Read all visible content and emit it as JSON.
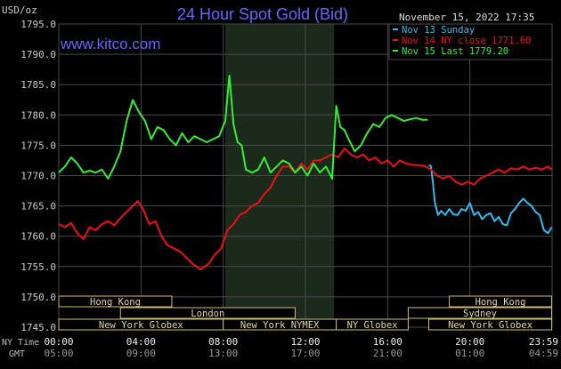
{
  "chart_data": {
    "type": "line",
    "title": "24 Hour Spot Gold (Bid)",
    "watermark": "www.kitco.com",
    "datetime": "November 15, 2022 17:35",
    "y_unit": "USD/oz",
    "ylim": [
      1745.0,
      1795.0
    ],
    "y_ticks": [
      "1795.0",
      "1790.0",
      "1785.0",
      "1780.0",
      "1775.0",
      "1770.0",
      "1765.0",
      "1760.0",
      "1755.0",
      "1750.0",
      "1745.0"
    ],
    "xlim": [
      0,
      24
    ],
    "x_ticks": [
      {
        "hour": 0,
        "ny": "00:00",
        "gmt": "05:00"
      },
      {
        "hour": 4,
        "ny": "04:00",
        "gmt": "09:00"
      },
      {
        "hour": 8,
        "ny": "08:00",
        "gmt": "13:00"
      },
      {
        "hour": 12,
        "ny": "12:00",
        "gmt": "17:00"
      },
      {
        "hour": 16,
        "ny": "16:00",
        "gmt": "21:00"
      },
      {
        "hour": 20,
        "ny": "20:00",
        "gmt": "01:00"
      },
      {
        "hour": 23.983,
        "ny": "23:59",
        "gmt": "04:59"
      }
    ],
    "x_axis_row_labels": {
      "ny": "NY Time",
      "gmt": "GMT"
    },
    "grid": true,
    "legend_position": "top-right",
    "highlight_band": {
      "from_hour": 8.1,
      "to_hour": 13.4,
      "color": "#1c2a1c"
    },
    "series": [
      {
        "name": "Nov 13 Sunday",
        "color": "#33bbee",
        "x": [
          18.0,
          18.1,
          18.2,
          18.3,
          18.45,
          18.6,
          18.8,
          19.0,
          19.2,
          19.4,
          19.6,
          19.8,
          20.0,
          20.2,
          20.4,
          20.6,
          20.8,
          21.0,
          21.2,
          21.4,
          21.6,
          21.8,
          22.0,
          22.2,
          22.4,
          22.6,
          22.8,
          23.0,
          23.2,
          23.4,
          23.6,
          23.8,
          23.98
        ],
        "y": [
          1771.7,
          1771.6,
          1769.0,
          1765.5,
          1763.5,
          1764.2,
          1763.5,
          1764.5,
          1763.6,
          1763.5,
          1764.5,
          1764.2,
          1765.5,
          1763.5,
          1764.0,
          1762.8,
          1763.5,
          1763.8,
          1762.5,
          1763.2,
          1762.0,
          1761.8,
          1763.8,
          1764.5,
          1765.5,
          1766.2,
          1765.5,
          1765.0,
          1764.0,
          1763.5,
          1761.0,
          1760.5,
          1761.5
        ]
      },
      {
        "name": "Nov 14 NY close 1771.60",
        "color": "#ee1111",
        "x": [
          0.0,
          0.3,
          0.6,
          0.9,
          1.2,
          1.5,
          1.8,
          2.1,
          2.4,
          2.7,
          3.0,
          3.3,
          3.6,
          3.85,
          4.1,
          4.4,
          4.7,
          5.0,
          5.3,
          5.6,
          5.9,
          6.2,
          6.5,
          6.9,
          7.3,
          7.6,
          7.9,
          8.2,
          8.5,
          8.8,
          9.1,
          9.4,
          9.7,
          10.0,
          10.3,
          10.6,
          10.9,
          11.2,
          11.5,
          11.8,
          12.1,
          12.4,
          12.7,
          13.0,
          13.3,
          13.6,
          13.9,
          14.2,
          14.5,
          14.8,
          15.1,
          15.4,
          15.7,
          16.0,
          16.3,
          16.6,
          16.9,
          17.2,
          17.5,
          17.8,
          18.1,
          18.4,
          18.7,
          19.0,
          19.3,
          19.6,
          19.9,
          20.2,
          20.5,
          20.8,
          21.1,
          21.4,
          21.7,
          22.0,
          22.3,
          22.6,
          22.9,
          23.2,
          23.5,
          23.8,
          23.98
        ],
        "y": [
          1762.0,
          1761.5,
          1762.2,
          1760.5,
          1759.5,
          1761.5,
          1761.0,
          1762.0,
          1762.5,
          1761.8,
          1763.0,
          1764.0,
          1765.0,
          1765.8,
          1764.5,
          1762.0,
          1762.5,
          1760.0,
          1758.5,
          1758.0,
          1757.5,
          1756.5,
          1755.5,
          1754.5,
          1755.5,
          1757.0,
          1758.0,
          1761.0,
          1762.0,
          1763.5,
          1764.0,
          1765.0,
          1765.5,
          1767.0,
          1768.0,
          1770.0,
          1771.5,
          1771.5,
          1770.5,
          1772.0,
          1771.0,
          1772.5,
          1772.5,
          1773.0,
          1773.5,
          1773.0,
          1774.5,
          1773.5,
          1773.0,
          1773.5,
          1772.5,
          1773.0,
          1772.0,
          1772.5,
          1771.5,
          1772.5,
          1772.0,
          1771.8,
          1771.7,
          1771.6,
          1771.0,
          1770.0,
          1769.5,
          1770.0,
          1769.0,
          1768.5,
          1769.0,
          1768.5,
          1769.5,
          1770.0,
          1770.5,
          1771.0,
          1770.5,
          1771.2,
          1771.0,
          1771.5,
          1771.0,
          1771.3,
          1771.0,
          1771.5,
          1771.0
        ]
      },
      {
        "name": "Nov 15 Last 1779.20",
        "color": "#33ee33",
        "x": [
          0.0,
          0.3,
          0.6,
          0.9,
          1.2,
          1.5,
          1.8,
          2.1,
          2.4,
          2.7,
          3.0,
          3.3,
          3.6,
          3.9,
          4.2,
          4.5,
          4.8,
          5.1,
          5.4,
          5.7,
          6.0,
          6.3,
          6.6,
          6.9,
          7.2,
          7.5,
          7.8,
          8.1,
          8.3,
          8.5,
          8.7,
          8.9,
          9.1,
          9.4,
          9.7,
          10.0,
          10.3,
          10.6,
          10.9,
          11.2,
          11.5,
          11.8,
          12.1,
          12.4,
          12.7,
          13.0,
          13.3,
          13.5,
          13.7,
          13.9,
          14.1,
          14.4,
          14.7,
          15.0,
          15.3,
          15.6,
          15.9,
          16.2,
          16.5,
          16.8,
          17.1,
          17.4,
          17.7,
          17.95
        ],
        "y": [
          1770.5,
          1771.5,
          1773.0,
          1772.0,
          1770.5,
          1770.8,
          1770.5,
          1771.0,
          1769.5,
          1771.5,
          1774.0,
          1779.0,
          1782.5,
          1780.5,
          1779.0,
          1776.0,
          1778.0,
          1777.5,
          1776.0,
          1775.0,
          1777.0,
          1775.5,
          1776.5,
          1776.0,
          1775.5,
          1776.0,
          1776.5,
          1779.0,
          1786.5,
          1778.5,
          1775.5,
          1775.0,
          1771.0,
          1770.5,
          1771.0,
          1773.0,
          1770.5,
          1771.5,
          1772.5,
          1772.0,
          1770.5,
          1771.5,
          1770.0,
          1772.0,
          1770.5,
          1771.5,
          1769.5,
          1781.5,
          1778.0,
          1777.5,
          1776.0,
          1774.0,
          1775.0,
          1777.0,
          1778.5,
          1778.0,
          1779.5,
          1780.0,
          1779.5,
          1779.0,
          1779.3,
          1779.5,
          1779.2,
          1779.2
        ]
      }
    ],
    "sessions": [
      {
        "name": "Hong Kong",
        "row": 0,
        "from_hour": 0.0,
        "to_hour": 5.5
      },
      {
        "name": "Hong Kong",
        "row": 0,
        "from_hour": 19.0,
        "to_hour": 23.98
      },
      {
        "name": "London",
        "row": 1,
        "from_hour": 3.0,
        "to_hour": 11.5
      },
      {
        "name": "Sydney",
        "row": 1,
        "from_hour": 17.0,
        "to_hour": 23.98
      },
      {
        "name": "New York Globex",
        "row": 2,
        "from_hour": 0.0,
        "to_hour": 8.0
      },
      {
        "name": "New York NYMEX",
        "row": 2,
        "from_hour": 8.0,
        "to_hour": 13.5
      },
      {
        "name": "NY Globex",
        "row": 2,
        "from_hour": 13.5,
        "to_hour": 17.0
      },
      {
        "name": "New York Globex",
        "row": 2,
        "from_hour": 18.0,
        "to_hour": 23.98
      }
    ]
  },
  "colors": {
    "background": "#000000",
    "grid": "#4a4a4a",
    "axis_text": "#cccccc",
    "title": "#6666ff",
    "watermark": "#6666ff",
    "session_border": "#ccbb77",
    "session_text": "#e0d8a0"
  }
}
